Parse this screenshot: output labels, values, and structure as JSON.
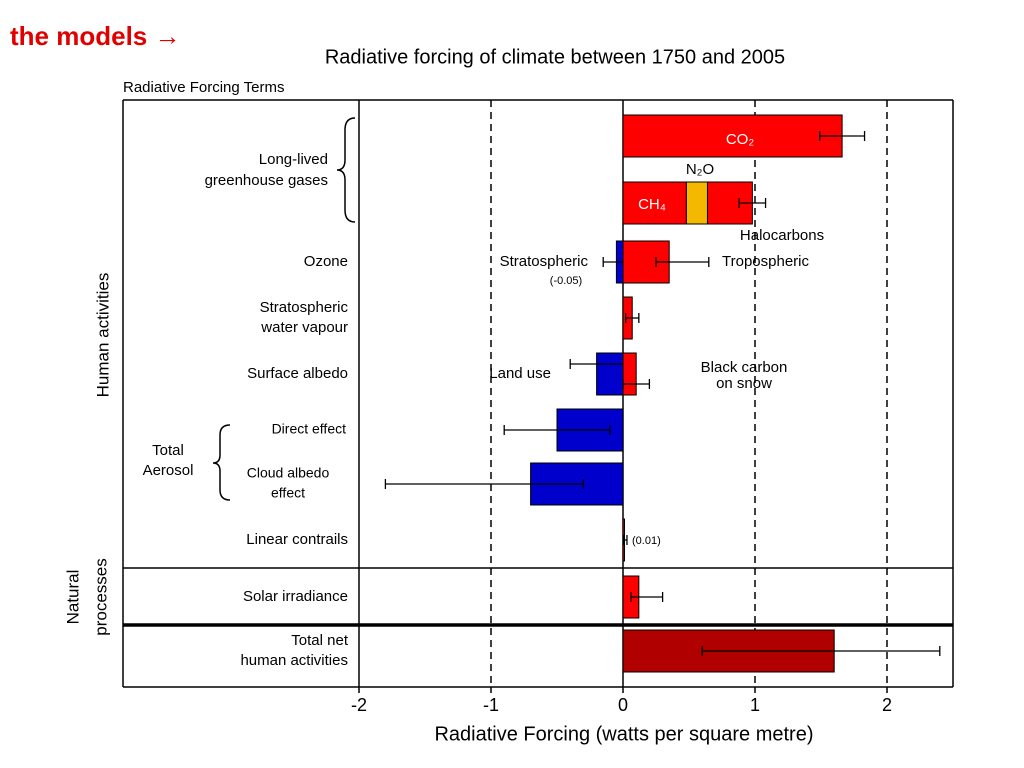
{
  "header": "the models →",
  "chart_data": {
    "type": "bar",
    "orientation": "horizontal",
    "title": "Radiative forcing of climate between 1750 and 2005",
    "subtitle": "Radiative Forcing Terms",
    "xlabel": "Radiative Forcing  (watts per square metre)",
    "xlim": [
      -2,
      2.5
    ],
    "xticks": [
      -2,
      -1,
      0,
      1,
      2
    ],
    "grid": "dashed",
    "side_labels": [
      [
        "Human activities"
      ],
      [
        "Natural",
        "processes"
      ]
    ],
    "groups": [
      [
        "Long-lived",
        "greenhouse gases"
      ],
      [
        "Total",
        "Aerosol"
      ]
    ],
    "rows": [
      {
        "label": [],
        "bars": [
          {
            "name": "CO₂",
            "value": 1.66,
            "low": 1.49,
            "high": 1.83,
            "color": "#ff0000"
          }
        ]
      },
      {
        "label": [],
        "stacked": true,
        "error": [
          0.88,
          1.08
        ],
        "bars": [
          {
            "name": "CH₄",
            "value": 0.48,
            "color": "#ff0000"
          },
          {
            "name": "N₂O",
            "value": 0.16,
            "color": "#f5b800"
          },
          {
            "name": "Halocarbons",
            "value": 0.34,
            "color": "#ff0000"
          }
        ]
      },
      {
        "label": [
          "Ozone"
        ],
        "bars": [
          {
            "name": "Stratospheric",
            "value": -0.05,
            "low": -0.15,
            "high": 0.05,
            "color": "#0000cc",
            "value_label": "(-0.05)"
          },
          {
            "name": "Tropospheric",
            "value": 0.35,
            "low": 0.25,
            "high": 0.65,
            "color": "#ff0000"
          }
        ]
      },
      {
        "label": [
          "Stratospheric",
          "water vapour"
        ],
        "bars": [
          {
            "value": 0.07,
            "low": 0.02,
            "high": 0.12,
            "color": "#ff0000"
          }
        ]
      },
      {
        "label": [
          "Surface albedo"
        ],
        "bars": [
          {
            "name": "Land use",
            "value": -0.2,
            "low": -0.4,
            "high": 0.0,
            "color": "#0000cc"
          },
          {
            "name": [
              "Black carbon",
              "on snow"
            ],
            "value": 0.1,
            "low": 0.0,
            "high": 0.2,
            "color": "#ff0000"
          }
        ]
      },
      {
        "label": [
          "Direct effect"
        ],
        "bars": [
          {
            "value": -0.5,
            "low": -0.9,
            "high": -0.1,
            "color": "#0000cc"
          }
        ]
      },
      {
        "label": [
          "Cloud albedo",
          "effect"
        ],
        "bars": [
          {
            "value": -0.7,
            "low": -1.8,
            "high": -0.3,
            "color": "#0000cc"
          }
        ]
      },
      {
        "label": [
          "Linear contrails"
        ],
        "bars": [
          {
            "value": 0.01,
            "low": 0.003,
            "high": 0.03,
            "color": "#ff0000",
            "value_label": "(0.01)"
          }
        ]
      },
      {
        "label": [
          "Solar irradiance"
        ],
        "bars": [
          {
            "value": 0.12,
            "low": 0.06,
            "high": 0.3,
            "color": "#ff0000"
          }
        ]
      },
      {
        "label": [
          "Total net",
          "human activities"
        ],
        "bars": [
          {
            "value": 1.6,
            "low": 0.6,
            "high": 2.4,
            "color": "#b00000"
          }
        ]
      }
    ]
  }
}
